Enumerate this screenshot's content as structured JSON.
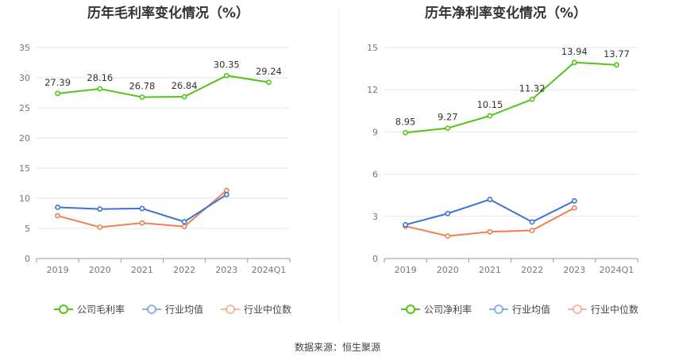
{
  "source": "数据来源：恒生聚源",
  "chart_data": [
    {
      "type": "line",
      "title": "历年毛利率变化情况（%）",
      "categories": [
        "2019",
        "2020",
        "2021",
        "2022",
        "2023",
        "2024Q1"
      ],
      "ylim": [
        0,
        35
      ],
      "yticks": [
        0,
        5,
        10,
        15,
        20,
        25,
        30,
        35
      ],
      "grid": true,
      "legend_position": "bottom",
      "series": [
        {
          "name": "公司毛利率",
          "color": "#52c41a",
          "values": [
            27.39,
            28.16,
            26.78,
            26.84,
            30.35,
            29.24
          ],
          "labels": [
            "27.39",
            "28.16",
            "26.78",
            "26.84",
            "30.35",
            "29.24"
          ]
        },
        {
          "name": "行业均值",
          "color": "#3a75d6",
          "values": [
            8.5,
            8.2,
            8.3,
            6.1,
            10.6,
            null
          ]
        },
        {
          "name": "行业中位数",
          "color": "#ee8054",
          "values": [
            7.1,
            5.2,
            5.9,
            5.3,
            11.3,
            null
          ]
        }
      ]
    },
    {
      "type": "line",
      "title": "历年净利率变化情况（%）",
      "categories": [
        "2019",
        "2020",
        "2021",
        "2022",
        "2023",
        "2024Q1"
      ],
      "ylim": [
        0,
        15
      ],
      "yticks": [
        0,
        3,
        6,
        9,
        12,
        15
      ],
      "grid": true,
      "legend_position": "bottom",
      "series": [
        {
          "name": "公司净利率",
          "color": "#52c41a",
          "values": [
            8.95,
            9.27,
            10.15,
            11.32,
            13.94,
            13.77
          ],
          "labels": [
            "8.95",
            "9.27",
            "10.15",
            "11.32",
            "13.94",
            "13.77"
          ]
        },
        {
          "name": "行业均值",
          "color": "#3a75d6",
          "values": [
            2.4,
            3.2,
            4.2,
            2.6,
            4.1,
            null
          ]
        },
        {
          "name": "行业中位数",
          "color": "#ee8054",
          "values": [
            2.3,
            1.6,
            1.9,
            2.0,
            3.6,
            null
          ]
        }
      ]
    }
  ]
}
